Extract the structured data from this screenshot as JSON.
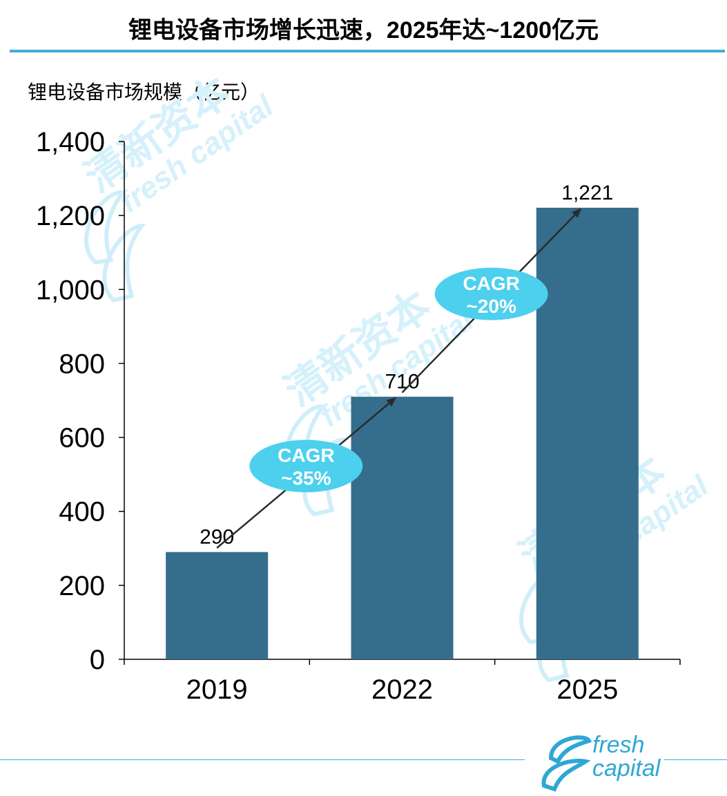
{
  "title": "锂电设备市场增长迅速，2025年达~1200亿元",
  "chart_data": {
    "type": "bar",
    "ylabel": "锂电设备市场规模（亿元）",
    "categories": [
      "2019",
      "2022",
      "2025"
    ],
    "values": [
      290,
      710,
      1221
    ],
    "value_labels": [
      "290",
      "710",
      "1,221"
    ],
    "ylim": [
      0,
      1400
    ],
    "yticks": [
      0,
      200,
      400,
      600,
      800,
      1000,
      1200,
      1400
    ],
    "ytick_labels": [
      "0",
      "200",
      "400",
      "600",
      "800",
      "1,000",
      "1,200",
      "1,400"
    ],
    "bar_color": "#356d8c",
    "annotations": [
      {
        "line1": "CAGR",
        "line2": "~35%",
        "from": "2019",
        "to": "2022"
      },
      {
        "line1": "CAGR",
        "line2": "~20%",
        "from": "2022",
        "to": "2025"
      }
    ],
    "badge_color": "#4dd0ee",
    "grid": false,
    "legend": "none"
  },
  "watermark": {
    "cn": "清新资本",
    "en": "fresh capital"
  },
  "logo": {
    "line1": "fresh",
    "line2": "capital"
  },
  "accent_color": "#3fb0d8"
}
